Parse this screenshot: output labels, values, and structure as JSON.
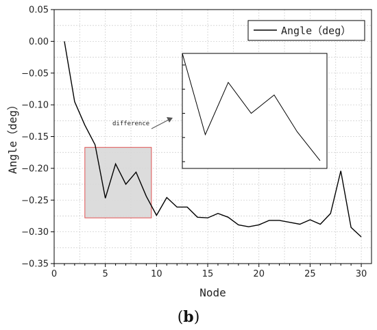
{
  "chart_data": {
    "type": "line",
    "xlabel": "Node",
    "ylabel": "Angle（deg）",
    "xlim": [
      0,
      31
    ],
    "ylim": [
      -0.35,
      0.05
    ],
    "xticks": [
      0,
      5,
      10,
      15,
      20,
      25,
      30
    ],
    "xtick_labels": [
      "0",
      "5",
      "10",
      "15",
      "20",
      "25",
      "30"
    ],
    "yticks": [
      0.05,
      0.0,
      -0.05,
      -0.1,
      -0.15,
      -0.2,
      -0.25,
      -0.3,
      -0.35
    ],
    "ytick_labels": [
      "0.05",
      "0.00",
      "−0.05",
      "−0.10",
      "−0.15",
      "−0.20",
      "−0.25",
      "−0.30",
      "−0.35"
    ],
    "grid": true,
    "legend_placement": "top-right",
    "series": [
      {
        "name": "Angle（deg）",
        "x": [
          1,
          2,
          3,
          4,
          5,
          6,
          7,
          8,
          9,
          10,
          11,
          12,
          13,
          14,
          15,
          16,
          17,
          18,
          19,
          20,
          21,
          22,
          23,
          24,
          25,
          26,
          27,
          28,
          29,
          30
        ],
        "y": [
          0.0,
          -0.095,
          -0.132,
          -0.163,
          -0.247,
          -0.193,
          -0.225,
          -0.206,
          -0.244,
          -0.274,
          -0.246,
          -0.261,
          -0.261,
          -0.277,
          -0.278,
          -0.271,
          -0.277,
          -0.289,
          -0.292,
          -0.289,
          -0.282,
          -0.282,
          -0.285,
          -0.288,
          -0.281,
          -0.288,
          -0.271,
          -0.204,
          -0.293,
          -0.308
        ],
        "color": "#000000"
      }
    ],
    "annotations": [
      {
        "text": "difference",
        "region_x": [
          3,
          9.5
        ],
        "region_y": [
          -0.278,
          -0.167
        ]
      }
    ],
    "highlight_color": "#e05050",
    "highlight_fill": "#d8d8d8",
    "caption": "(b)",
    "caption_letter": "b"
  }
}
